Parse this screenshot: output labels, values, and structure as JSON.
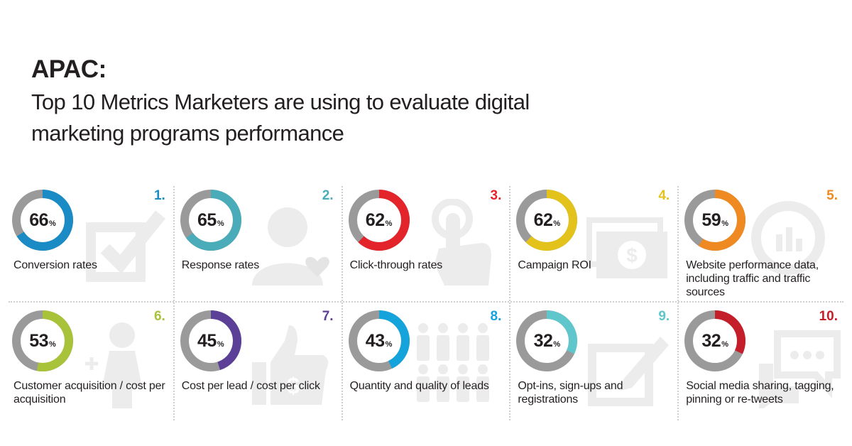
{
  "header": {
    "title": "APAC:",
    "subtitle": "Top 10 Metrics Marketers are using to evaluate digital marketing programs performance"
  },
  "chart_data": {
    "type": "donut",
    "title": "APAC:",
    "subtitle": "Top 10 Metrics Marketers are using to evaluate digital marketing programs performance",
    "unit": "%",
    "remainder_color": "#9a9a9a",
    "items": [
      {
        "rank": "1.",
        "value": 66,
        "label": "Conversion rates",
        "color": "#1a8bc4",
        "icon": "checkbox-icon"
      },
      {
        "rank": "2.",
        "value": 65,
        "label": "Response rates",
        "color": "#4aacb8",
        "icon": "person-heart-icon"
      },
      {
        "rank": "3.",
        "value": 62,
        "label": "Click-through rates",
        "color": "#e3242b",
        "icon": "pointer-hand-icon"
      },
      {
        "rank": "4.",
        "value": 62,
        "label": "Campaign ROI",
        "color": "#e4c21c",
        "icon": "money-icon"
      },
      {
        "rank": "5.",
        "value": 59,
        "label": "Website performance data, including traffic and traffic sources",
        "color": "#ef8a22",
        "icon": "analytics-icon"
      },
      {
        "rank": "6.",
        "value": 53,
        "label": "Customer acquisition / cost per acquisition",
        "color": "#a8c23a",
        "icon": "person-plus-icon"
      },
      {
        "rank": "7.",
        "value": 45,
        "label": "Cost per lead / cost per click",
        "color": "#5c3f97",
        "icon": "thumbs-up-dollar-icon"
      },
      {
        "rank": "8.",
        "value": 43,
        "label": "Quantity and quality of leads",
        "color": "#15a3dc",
        "icon": "crowd-icon"
      },
      {
        "rank": "9.",
        "value": 32,
        "label": "Opt-ins, sign-ups and registrations",
        "color": "#5fc6cc",
        "icon": "pencil-form-icon"
      },
      {
        "rank": "10.",
        "value": 32,
        "label": "Social media sharing, tagging, pinning or re-tweets",
        "color": "#c41e2a",
        "icon": "chat-bubbles-icon"
      }
    ]
  }
}
